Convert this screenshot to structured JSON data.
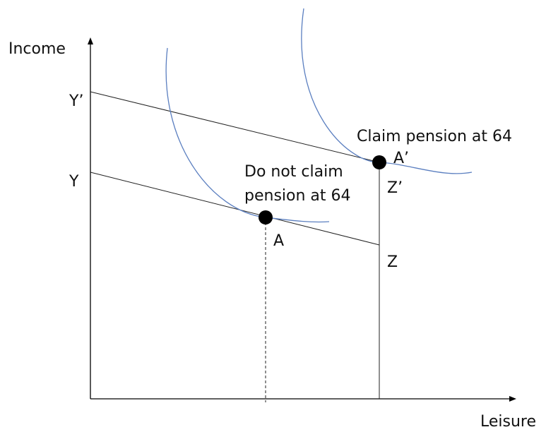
{
  "axes": {
    "y_label": "Income",
    "x_label": "Leisure"
  },
  "intercepts": {
    "upper": "Y’",
    "lower": "Y"
  },
  "points": {
    "claim": {
      "caption": "Claim pension at 64",
      "label": "A’",
      "foot_label": "Z’"
    },
    "no_claim": {
      "caption_lines": [
        "Do not claim",
        "pension at 64"
      ],
      "label": "A",
      "foot_label": "Z"
    }
  }
}
